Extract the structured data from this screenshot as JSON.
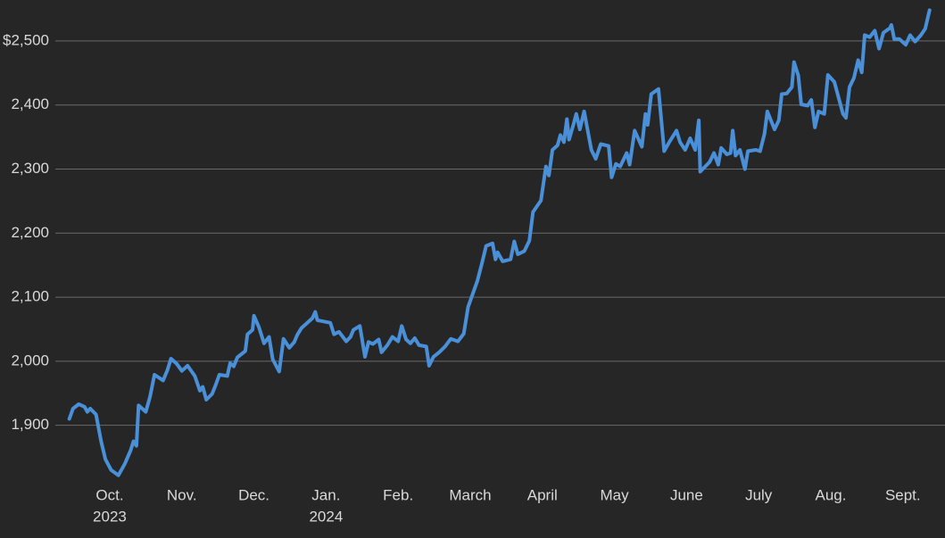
{
  "chart_data": {
    "type": "line",
    "x": [
      0.44,
      0.49,
      0.57,
      0.65,
      0.69,
      0.73,
      0.81,
      0.88,
      0.94,
      1.02,
      1.12,
      1.21,
      1.29,
      1.33,
      1.37,
      1.4,
      1.5,
      1.56,
      1.62,
      1.74,
      1.8,
      1.85,
      1.93,
      2.0,
      2.08,
      2.18,
      2.25,
      2.29,
      2.34,
      2.42,
      2.47,
      2.52,
      2.63,
      2.67,
      2.72,
      2.77,
      2.88,
      2.91,
      2.98,
      3.0,
      3.07,
      3.14,
      3.21,
      3.26,
      3.35,
      3.41,
      3.49,
      3.56,
      3.6,
      3.66,
      3.81,
      3.85,
      3.88,
      4.06,
      4.11,
      4.18,
      4.28,
      4.34,
      4.38,
      4.47,
      4.54,
      4.59,
      4.65,
      4.73,
      4.77,
      4.85,
      4.92,
      5.0,
      5.05,
      5.11,
      5.17,
      5.23,
      5.29,
      5.39,
      5.43,
      5.49,
      5.57,
      5.65,
      5.73,
      5.83,
      5.91,
      5.97,
      6.1,
      6.16,
      6.22,
      6.31,
      6.35,
      6.38,
      6.45,
      6.56,
      6.61,
      6.66,
      6.75,
      6.82,
      6.87,
      6.98,
      7.05,
      7.09,
      7.14,
      7.21,
      7.25,
      7.3,
      7.34,
      7.37,
      7.43,
      7.47,
      7.52,
      7.58,
      7.68,
      7.74,
      7.81,
      7.92,
      7.96,
      8.02,
      8.08,
      8.17,
      8.21,
      8.28,
      8.38,
      8.43,
      8.46,
      8.51,
      8.61,
      8.69,
      8.76,
      8.86,
      8.91,
      8.98,
      9.05,
      9.12,
      9.17,
      9.19,
      9.32,
      9.38,
      9.44,
      9.48,
      9.56,
      9.61,
      9.64,
      9.68,
      9.74,
      9.81,
      9.85,
      9.96,
      10.02,
      10.08,
      10.12,
      10.22,
      10.28,
      10.32,
      10.39,
      10.46,
      10.49,
      10.55,
      10.59,
      10.68,
      10.73,
      10.78,
      10.83,
      10.91,
      10.96,
      11.05,
      11.17,
      11.21,
      11.26,
      11.32,
      11.38,
      11.43,
      11.47,
      11.54,
      11.61,
      11.67,
      11.73,
      11.82,
      11.84,
      11.88,
      11.95,
      12.04,
      12.1,
      12.17,
      12.25,
      12.31,
      12.37
    ],
    "series": [
      {
        "color": "#4a90d9",
        "values": [
          1910,
          1926,
          1933,
          1929,
          1921,
          1926,
          1917,
          1875,
          1847,
          1830,
          1822,
          1840,
          1861,
          1875,
          1868,
          1931,
          1921,
          1945,
          1979,
          1970,
          1986,
          2004,
          1996,
          1985,
          1993,
          1977,
          1954,
          1960,
          1940,
          1949,
          1963,
          1979,
          1977,
          1997,
          1992,
          2006,
          2016,
          2042,
          2049,
          2071,
          2053,
          2028,
          2038,
          2003,
          1984,
          2035,
          2021,
          2030,
          2041,
          2052,
          2067,
          2077,
          2064,
          2060,
          2042,
          2046,
          2031,
          2038,
          2049,
          2055,
          2007,
          2030,
          2027,
          2034,
          2014,
          2025,
          2038,
          2031,
          2055,
          2034,
          2028,
          2036,
          2025,
          2023,
          1993,
          2007,
          2014,
          2023,
          2035,
          2031,
          2043,
          2085,
          2126,
          2152,
          2180,
          2184,
          2159,
          2170,
          2156,
          2159,
          2187,
          2167,
          2172,
          2188,
          2233,
          2251,
          2304,
          2290,
          2330,
          2337,
          2353,
          2342,
          2378,
          2346,
          2369,
          2386,
          2362,
          2390,
          2330,
          2316,
          2339,
          2336,
          2287,
          2308,
          2304,
          2325,
          2307,
          2360,
          2335,
          2386,
          2369,
          2417,
          2425,
          2328,
          2342,
          2360,
          2342,
          2330,
          2348,
          2330,
          2376,
          2296,
          2311,
          2325,
          2307,
          2333,
          2323,
          2325,
          2360,
          2321,
          2330,
          2300,
          2328,
          2330,
          2328,
          2355,
          2390,
          2362,
          2376,
          2417,
          2418,
          2428,
          2467,
          2446,
          2401,
          2399,
          2408,
          2365,
          2390,
          2386,
          2447,
          2436,
          2386,
          2380,
          2428,
          2442,
          2470,
          2451,
          2509,
          2506,
          2516,
          2488,
          2513,
          2520,
          2525,
          2503,
          2503,
          2494,
          2509,
          2499,
          2509,
          2519,
          2548
        ]
      }
    ],
    "xlim": [
      0.3,
      12.5
    ],
    "xticks": [
      {
        "value": 1,
        "label": "Oct."
      },
      {
        "value": 2,
        "label": "Nov."
      },
      {
        "value": 3,
        "label": "Dec."
      },
      {
        "value": 4,
        "label": "Jan."
      },
      {
        "value": 5,
        "label": "Feb."
      },
      {
        "value": 6,
        "label": "March"
      },
      {
        "value": 7,
        "label": "April"
      },
      {
        "value": 8,
        "label": "May"
      },
      {
        "value": 9,
        "label": "June"
      },
      {
        "value": 10,
        "label": "July"
      },
      {
        "value": 11,
        "label": "Aug."
      },
      {
        "value": 12,
        "label": "Sept."
      }
    ],
    "year_labels": [
      {
        "value": 1,
        "label": "2023"
      },
      {
        "value": 4,
        "label": "2024"
      }
    ],
    "ylim": [
      1810,
      2550
    ],
    "yticks": [
      {
        "value": 1900,
        "label": "1,900"
      },
      {
        "value": 2000,
        "label": "2,000"
      },
      {
        "value": 2100,
        "label": "2,100"
      },
      {
        "value": 2200,
        "label": "2,200"
      },
      {
        "value": 2300,
        "label": "2,300"
      },
      {
        "value": 2400,
        "label": "2,400"
      },
      {
        "value": 2500,
        "label": "$2,500"
      }
    ],
    "grid": true
  }
}
